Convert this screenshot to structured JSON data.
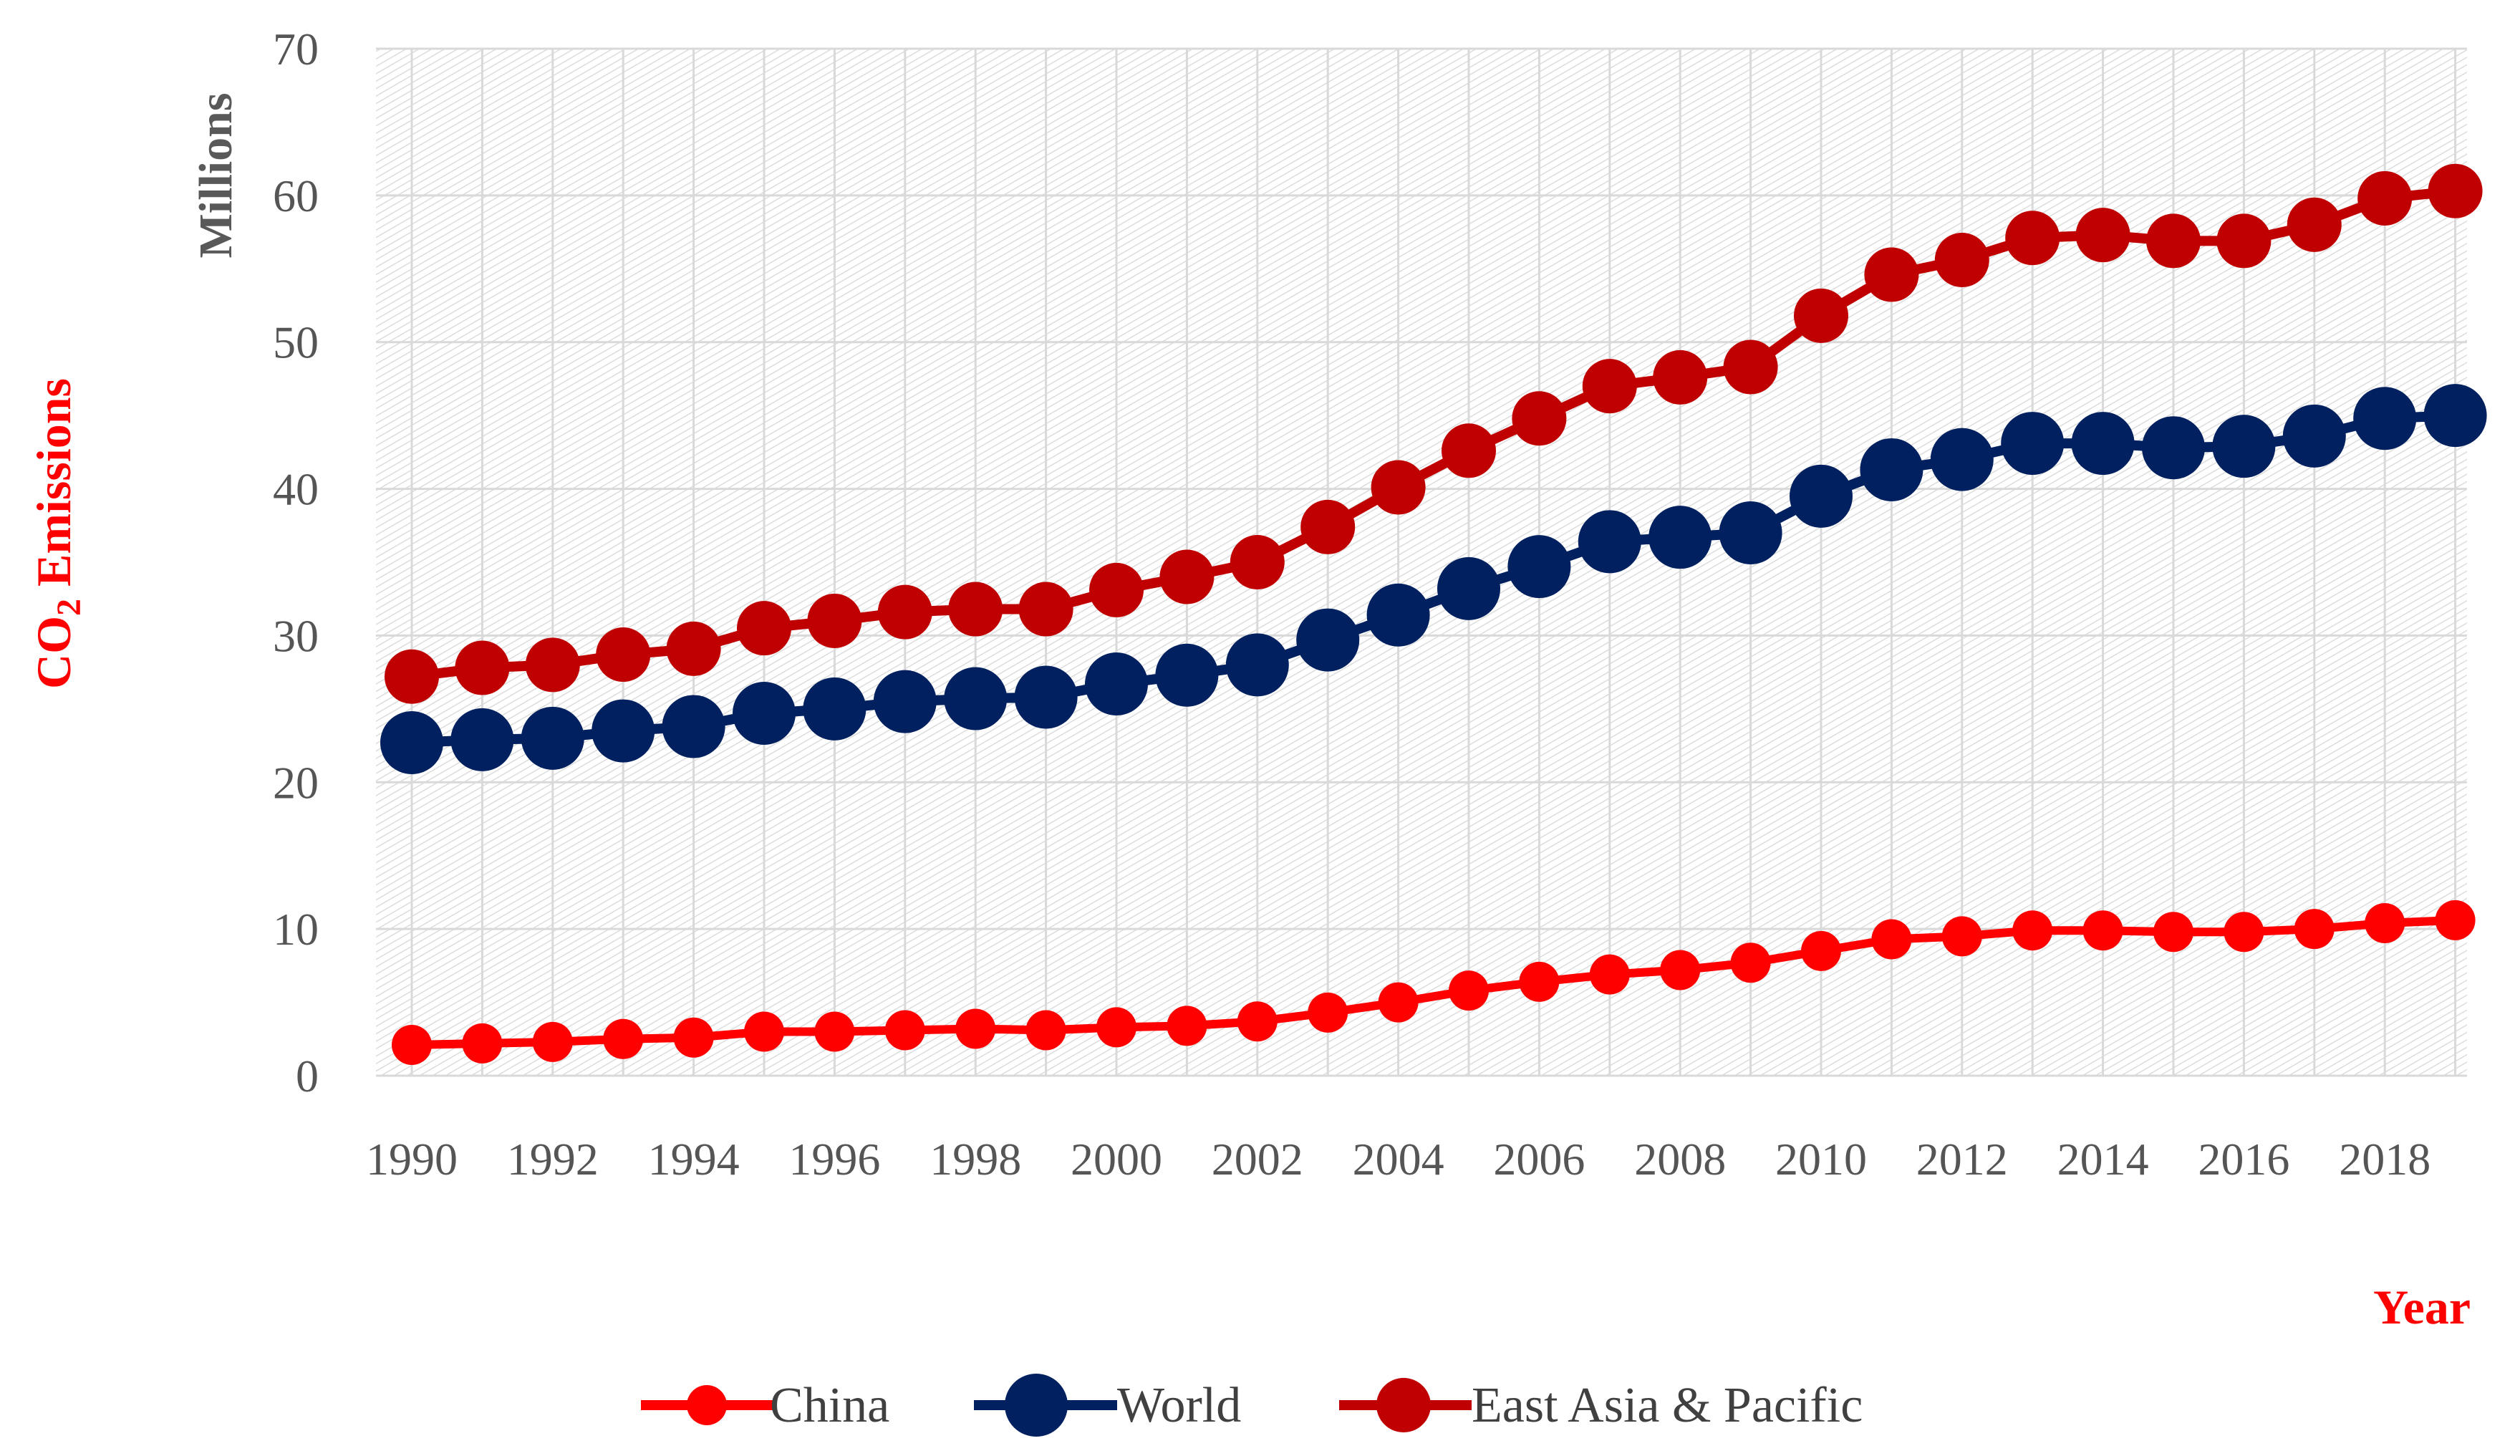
{
  "chart_data": {
    "type": "line",
    "title": "",
    "ylabel": "CO2 Emissions",
    "ylabel_main": "CO",
    "ylabel_sub": "2",
    "ylabel_rest": " Emissions",
    "y_units": "Millions",
    "xlabel": "Year",
    "ylim": [
      0,
      70
    ],
    "y_ticks": [
      "0",
      "10",
      "20",
      "30",
      "40",
      "50",
      "60",
      "70"
    ],
    "x": [
      1990,
      1991,
      1992,
      1993,
      1994,
      1995,
      1996,
      1997,
      1998,
      1999,
      2000,
      2001,
      2002,
      2003,
      2004,
      2005,
      2006,
      2007,
      2008,
      2009,
      2010,
      2011,
      2012,
      2013,
      2014,
      2015,
      2016,
      2017,
      2018,
      2019
    ],
    "x_tick_labels": [
      "1990",
      "1992",
      "1994",
      "1996",
      "1998",
      "2000",
      "2002",
      "2004",
      "2006",
      "2008",
      "2010",
      "2012",
      "2014",
      "2016",
      "2018"
    ],
    "grid": true,
    "legend_position": "bottom",
    "series": [
      {
        "name": "China",
        "color": "#ff0000",
        "values": [
          2.1,
          2.2,
          2.3,
          2.5,
          2.6,
          3.0,
          3.0,
          3.1,
          3.2,
          3.1,
          3.3,
          3.4,
          3.7,
          4.3,
          5.0,
          5.8,
          6.4,
          6.9,
          7.2,
          7.7,
          8.5,
          9.3,
          9.5,
          9.9,
          9.9,
          9.8,
          9.8,
          10.0,
          10.4,
          10.6
        ]
      },
      {
        "name": "World",
        "color": "#002060",
        "values": [
          22.7,
          22.9,
          23.0,
          23.5,
          23.8,
          24.7,
          25.0,
          25.5,
          25.7,
          25.8,
          26.7,
          27.3,
          28.0,
          29.7,
          31.4,
          33.2,
          34.7,
          36.4,
          36.7,
          37.0,
          39.5,
          41.3,
          42.0,
          43.1,
          43.1,
          42.8,
          42.9,
          43.6,
          44.8,
          45.0
        ]
      },
      {
        "name": "East Asia & Pacific",
        "color": "#c00000",
        "values": [
          27.2,
          27.8,
          28.0,
          28.7,
          29.1,
          30.5,
          31.0,
          31.6,
          31.8,
          31.8,
          33.1,
          34.0,
          35.0,
          37.4,
          40.1,
          42.6,
          44.8,
          47.0,
          47.6,
          48.3,
          51.8,
          54.6,
          55.6,
          57.1,
          57.3,
          56.9,
          56.9,
          58.0,
          59.8,
          60.3
        ]
      }
    ]
  }
}
